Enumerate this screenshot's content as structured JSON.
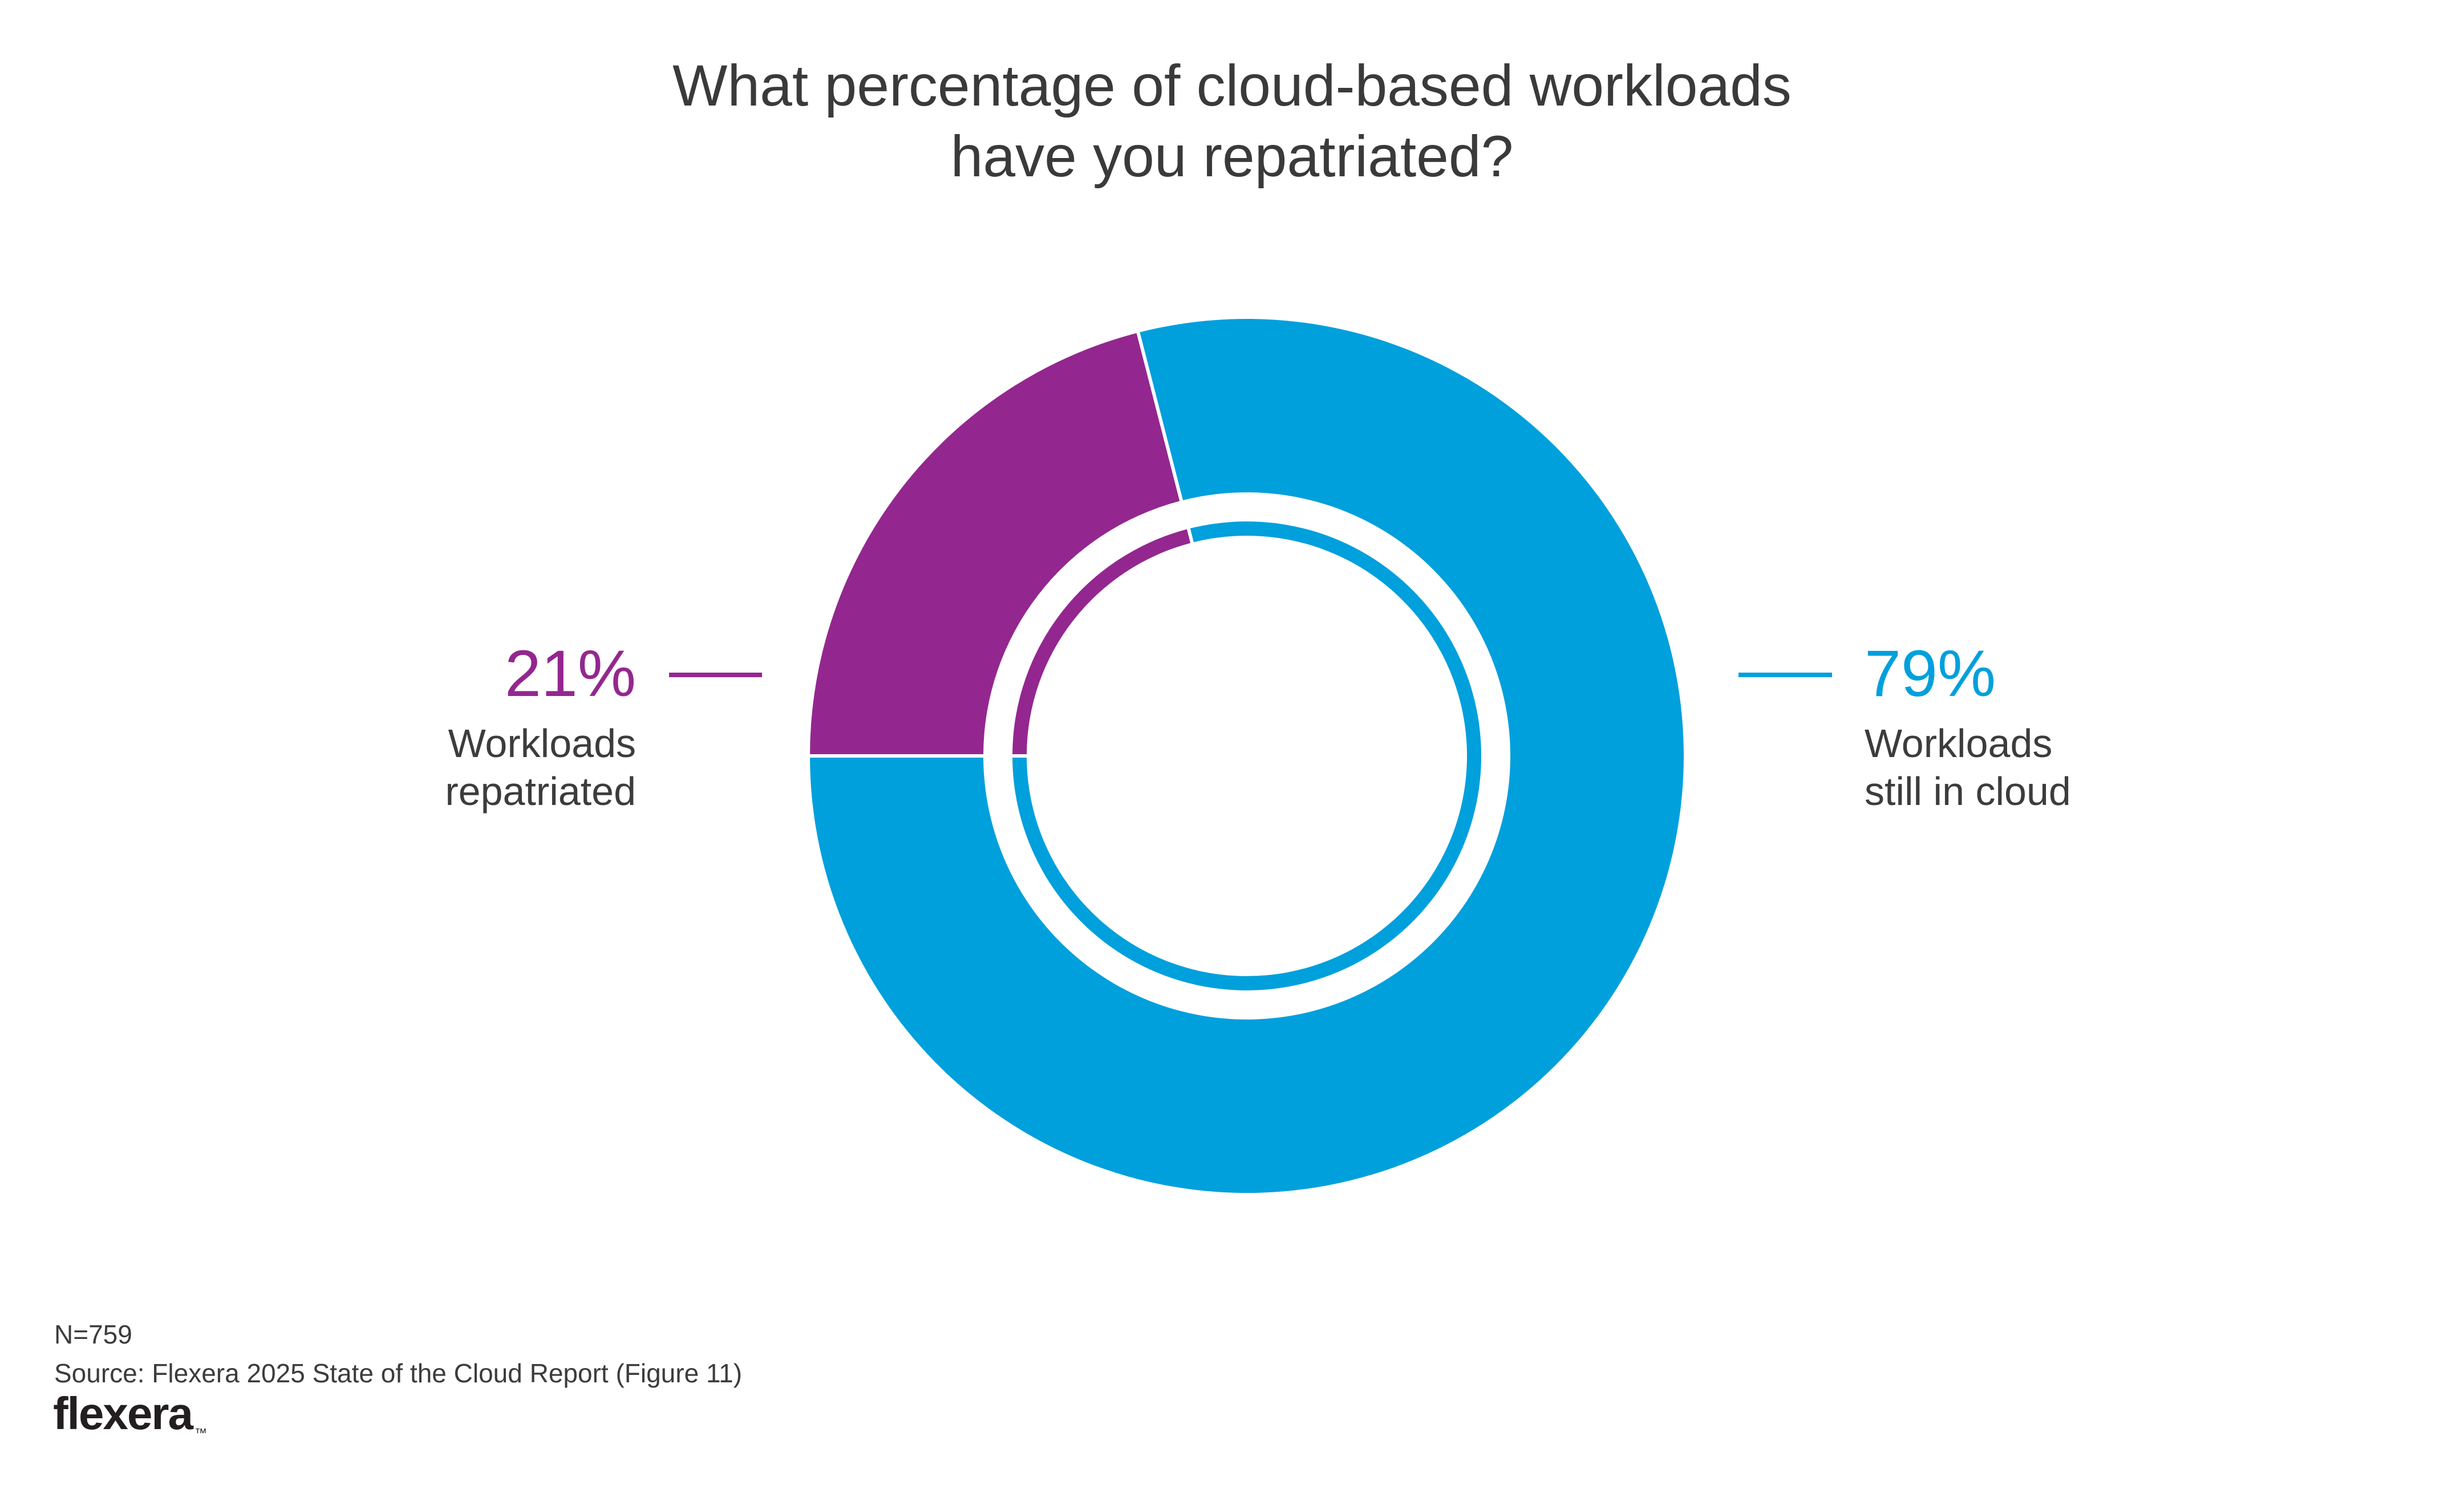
{
  "title": {
    "line1": "What percentage of cloud-based workloads",
    "line2": "have you repatriated?"
  },
  "chart_data": {
    "type": "pie",
    "variant": "donut",
    "title": "What percentage of cloud-based workloads have you repatriated?",
    "categories": [
      "Workloads repatriated",
      "Workloads still in cloud"
    ],
    "values": [
      21,
      79
    ],
    "slices": [
      {
        "id": "repatriated",
        "label": "Workloads repatriated",
        "value": 21,
        "display": "21%",
        "color": "#93278F"
      },
      {
        "id": "still-in-cloud",
        "label": "Workloads still in cloud",
        "value": 79,
        "display": "79%",
        "color": "#00A0DC"
      }
    ],
    "rotation_deg": 270,
    "clockwise": true,
    "legend_position": "sides",
    "n_label": "N=759",
    "source": "Source: Flexera 2025 State of the Cloud Report (Figure 11)"
  },
  "callouts": {
    "left": {
      "value": "21%",
      "label_line1": "Workloads",
      "label_line2": "repatriated"
    },
    "right": {
      "value": "79%",
      "label_line1": "Workloads",
      "label_line2": "still in cloud"
    }
  },
  "footer": {
    "n": "N=759",
    "source": "Source: Flexera 2025 State of the Cloud Report (Figure 11)",
    "logo_text": "flexera",
    "trademark": "™"
  },
  "colors": {
    "purple": "#93278F",
    "blue": "#00A0DC",
    "text_dark": "#3c3c3c",
    "title_gray": "#3a3a3a",
    "logo_black": "#231f20",
    "background": "#ffffff"
  }
}
